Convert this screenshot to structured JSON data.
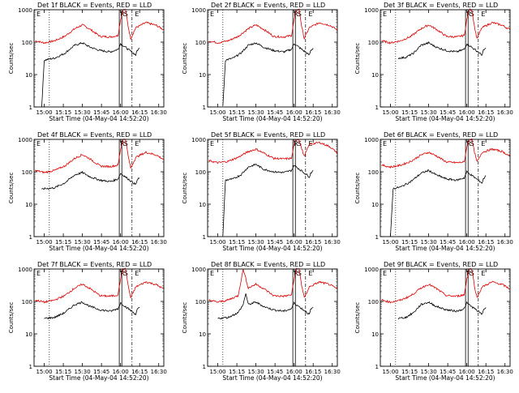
{
  "figure": {
    "xlabel": "Start Time (04-May-04 14:52:20)",
    "ylabel": "Counts/sec",
    "black_label": "BLACK = Events",
    "red_label": "RED = LLD",
    "colors": {
      "events": "#000000",
      "lld": "#dd0000",
      "axes": "#000000"
    }
  },
  "chart_data": [
    {
      "type": "line",
      "detector": "1f",
      "title": "Det 1f BLACK = Events, RED = LLD",
      "xlabel": "Start Time (04-May-04 14:52:20)",
      "ylabel": "Counts/sec",
      "yscale": "log",
      "ylim": [
        1,
        1000
      ],
      "xlim": [
        "14:52",
        "16:34"
      ],
      "xticks": [
        "15:00",
        "15:15",
        "15:30",
        "15:45",
        "16:00",
        "16:15",
        "16:30"
      ],
      "yticks": [
        "1",
        "10",
        "100",
        "1000"
      ],
      "markers": [
        "E",
        "R",
        "S",
        "E"
      ],
      "series": [
        {
          "name": "RED = LLD",
          "color": "#dd0000",
          "x": [
            "14:53",
            "15:00",
            "15:08",
            "15:16",
            "15:24",
            "15:30",
            "15:36",
            "15:44",
            "15:52",
            "15:58",
            "16:00",
            "16:02",
            "16:04",
            "16:06",
            "16:08",
            "16:12",
            "16:20",
            "16:28",
            "16:34"
          ],
          "y": [
            110,
            95,
            110,
            150,
            260,
            340,
            250,
            150,
            145,
            160,
            500,
            1000,
            1000,
            300,
            130,
            280,
            400,
            330,
            240
          ]
        },
        {
          "name": "BLACK = Events",
          "color": "#000000",
          "x": [
            "14:58",
            "15:00",
            "15:08",
            "15:16",
            "15:24",
            "15:30",
            "15:36",
            "15:44",
            "15:52",
            "15:58",
            "16:00",
            "16:12",
            "16:13",
            "16:15"
          ],
          "y": [
            1,
            28,
            32,
            45,
            80,
            95,
            70,
            55,
            50,
            60,
            90,
            40,
            55,
            65
          ]
        }
      ]
    },
    {
      "type": "line",
      "detector": "2f",
      "title": "Det 2f BLACK = Events, RED = LLD",
      "xlabel": "Start Time (04-May-04 14:52:20)",
      "ylabel": "Counts/sec",
      "yscale": "log",
      "ylim": [
        1,
        1000
      ],
      "xlim": [
        "14:52",
        "16:34"
      ],
      "xticks": [
        "15:00",
        "15:15",
        "15:30",
        "15:45",
        "16:00",
        "16:15",
        "16:30"
      ],
      "yticks": [
        "1",
        "10",
        "100",
        "1000"
      ],
      "markers": [
        "E",
        "R",
        "S",
        "E"
      ],
      "series": [
        {
          "name": "RED = LLD",
          "color": "#dd0000",
          "x": [
            "14:53",
            "15:00",
            "15:08",
            "15:16",
            "15:24",
            "15:30",
            "15:36",
            "15:44",
            "15:52",
            "15:58",
            "16:00",
            "16:02",
            "16:04",
            "16:06",
            "16:08",
            "16:12",
            "16:20",
            "16:28",
            "16:34"
          ],
          "y": [
            110,
            95,
            110,
            150,
            260,
            340,
            250,
            150,
            145,
            160,
            500,
            1000,
            1000,
            300,
            130,
            280,
            400,
            330,
            240
          ]
        },
        {
          "name": "BLACK = Events",
          "color": "#000000",
          "x": [
            "15:04",
            "15:06",
            "15:12",
            "15:18",
            "15:24",
            "15:30",
            "15:36",
            "15:44",
            "15:52",
            "15:58",
            "16:00",
            "16:12",
            "16:13",
            "16:15"
          ],
          "y": [
            1,
            28,
            32,
            45,
            80,
            95,
            70,
            55,
            50,
            60,
            90,
            40,
            55,
            65
          ]
        }
      ]
    },
    {
      "type": "line",
      "detector": "3f",
      "title": "Det 3f BLACK = Events, RED = LLD",
      "xlabel": "Start Time (04-May-04 14:52:20)",
      "ylabel": "Counts/sec",
      "yscale": "log",
      "ylim": [
        1,
        1000
      ],
      "xlim": [
        "14:52",
        "16:34"
      ],
      "xticks": [
        "15:00",
        "15:15",
        "15:30",
        "15:45",
        "16:00",
        "16:15",
        "16:30"
      ],
      "yticks": [
        "1",
        "10",
        "100",
        "1000"
      ],
      "markers": [
        "E",
        "R",
        "S",
        "E"
      ],
      "series": [
        {
          "name": "RED = LLD",
          "color": "#dd0000",
          "x": [
            "14:53",
            "15:00",
            "15:08",
            "15:16",
            "15:24",
            "15:30",
            "15:36",
            "15:44",
            "15:52",
            "15:58",
            "16:00",
            "16:02",
            "16:04",
            "16:06",
            "16:08",
            "16:12",
            "16:20",
            "16:28",
            "16:34"
          ],
          "y": [
            110,
            95,
            110,
            150,
            260,
            340,
            250,
            150,
            145,
            160,
            500,
            1000,
            1000,
            300,
            130,
            280,
            400,
            330,
            240
          ]
        },
        {
          "name": "BLACK = Events",
          "color": "#000000",
          "x": [
            "15:06",
            "15:12",
            "15:18",
            "15:24",
            "15:30",
            "15:36",
            "15:44",
            "15:52",
            "15:58",
            "16:00",
            "16:12",
            "16:13",
            "16:15"
          ],
          "y": [
            32,
            34,
            45,
            80,
            95,
            70,
            55,
            50,
            60,
            90,
            40,
            55,
            65
          ]
        }
      ]
    },
    {
      "type": "line",
      "detector": "4f",
      "title": "Det 4f BLACK = Events, RED = LLD",
      "xlabel": "Start Time (04-May-04 14:52:20)",
      "ylabel": "Counts/sec",
      "yscale": "log",
      "ylim": [
        1,
        1000
      ],
      "xlim": [
        "14:52",
        "16:34"
      ],
      "xticks": [
        "15:00",
        "15:15",
        "15:30",
        "15:45",
        "16:00",
        "16:15",
        "16:30"
      ],
      "yticks": [
        "1",
        "10",
        "100",
        "1000"
      ],
      "markers": [
        "E",
        "R",
        "S",
        "E"
      ],
      "series": [
        {
          "name": "RED = LLD",
          "color": "#dd0000",
          "x": [
            "14:53",
            "15:00",
            "15:08",
            "15:16",
            "15:24",
            "15:30",
            "15:36",
            "15:44",
            "15:52",
            "15:58",
            "16:00",
            "16:02",
            "16:04",
            "16:06",
            "16:08",
            "16:12",
            "16:20",
            "16:28",
            "16:34"
          ],
          "y": [
            110,
            95,
            110,
            150,
            260,
            340,
            250,
            150,
            145,
            160,
            500,
            1000,
            1000,
            300,
            130,
            280,
            400,
            330,
            240
          ]
        },
        {
          "name": "BLACK = Events",
          "color": "#000000",
          "x": [
            "14:58",
            "15:00",
            "15:08",
            "15:16",
            "15:24",
            "15:30",
            "15:36",
            "15:44",
            "15:52",
            "15:58",
            "16:00",
            "16:12",
            "16:13",
            "16:15"
          ],
          "y": [
            28,
            30,
            32,
            45,
            80,
            95,
            70,
            55,
            50,
            60,
            90,
            40,
            55,
            65
          ]
        }
      ]
    },
    {
      "type": "line",
      "detector": "5f",
      "title": "Det 5f BLACK = Events, RED = LLD",
      "xlabel": "Start Time (04-May-04 14:52:20)",
      "ylabel": "Counts/sec",
      "yscale": "log",
      "ylim": [
        1,
        1000
      ],
      "xlim": [
        "14:52",
        "16:34"
      ],
      "xticks": [
        "15:00",
        "15:15",
        "15:30",
        "15:45",
        "16:00",
        "16:15",
        "16:30"
      ],
      "yticks": [
        "1",
        "10",
        "100",
        "1000"
      ],
      "markers": [
        "E",
        "R",
        "S",
        "E"
      ],
      "series": [
        {
          "name": "RED = LLD",
          "color": "#dd0000",
          "x": [
            "14:53",
            "15:00",
            "15:08",
            "15:16",
            "15:24",
            "15:30",
            "15:36",
            "15:44",
            "15:52",
            "15:58",
            "16:00",
            "16:02",
            "16:04",
            "16:06",
            "16:08",
            "16:12",
            "16:20",
            "16:28",
            "16:34"
          ],
          "y": [
            220,
            190,
            210,
            280,
            420,
            500,
            380,
            260,
            250,
            260,
            700,
            1000,
            1000,
            500,
            300,
            700,
            800,
            600,
            380
          ]
        },
        {
          "name": "BLACK = Events",
          "color": "#000000",
          "x": [
            "15:04",
            "15:06",
            "15:12",
            "15:18",
            "15:24",
            "15:30",
            "15:36",
            "15:44",
            "15:52",
            "15:58",
            "16:00",
            "16:12",
            "16:13",
            "16:15"
          ],
          "y": [
            1,
            55,
            60,
            80,
            140,
            170,
            120,
            100,
            95,
            110,
            160,
            70,
            90,
            110
          ]
        }
      ]
    },
    {
      "type": "line",
      "detector": "6f",
      "title": "Det 6f BLACK = Events, RED = LLD",
      "xlabel": "Start Time (04-May-04 14:52:20)",
      "ylabel": "Counts/sec",
      "yscale": "log",
      "ylim": [
        1,
        1000
      ],
      "xlim": [
        "14:52",
        "16:34"
      ],
      "xticks": [
        "15:00",
        "15:15",
        "15:30",
        "15:45",
        "16:00",
        "16:15",
        "16:30"
      ],
      "yticks": [
        "1",
        "10",
        "100",
        "1000"
      ],
      "markers": [
        "E",
        "R",
        "S",
        "E"
      ],
      "series": [
        {
          "name": "RED = LLD",
          "color": "#dd0000",
          "x": [
            "14:53",
            "15:00",
            "15:08",
            "15:16",
            "15:24",
            "15:30",
            "15:36",
            "15:44",
            "15:52",
            "15:58",
            "16:00",
            "16:02",
            "16:04",
            "16:06",
            "16:08",
            "16:12",
            "16:20",
            "16:28",
            "16:34"
          ],
          "y": [
            160,
            140,
            160,
            210,
            330,
            400,
            310,
            200,
            190,
            200,
            600,
            1000,
            1000,
            400,
            200,
            400,
            500,
            420,
            300
          ]
        },
        {
          "name": "BLACK = Events",
          "color": "#000000",
          "x": [
            "15:00",
            "15:02",
            "15:08",
            "15:16",
            "15:24",
            "15:30",
            "15:36",
            "15:44",
            "15:52",
            "15:58",
            "16:00",
            "16:12",
            "16:13",
            "16:15"
          ],
          "y": [
            1,
            30,
            34,
            50,
            90,
            110,
            80,
            60,
            55,
            65,
            100,
            45,
            60,
            75
          ]
        }
      ]
    },
    {
      "type": "line",
      "detector": "7f",
      "title": "Det 7f BLACK = Events, RED = LLD",
      "xlabel": "Start Time (04-May-04 14:52:20)",
      "ylabel": "Counts/sec",
      "yscale": "log",
      "ylim": [
        1,
        1000
      ],
      "xlim": [
        "14:52",
        "16:34"
      ],
      "xticks": [
        "15:00",
        "15:15",
        "15:30",
        "15:45",
        "16:00",
        "16:15",
        "16:30"
      ],
      "yticks": [
        "1",
        "10",
        "100",
        "1000"
      ],
      "markers": [
        "E",
        "R",
        "S",
        "E"
      ],
      "series": [
        {
          "name": "RED = LLD",
          "color": "#dd0000",
          "x": [
            "14:53",
            "15:00",
            "15:08",
            "15:16",
            "15:24",
            "15:30",
            "15:36",
            "15:44",
            "15:52",
            "15:58",
            "16:00",
            "16:02",
            "16:04",
            "16:06",
            "16:08",
            "16:12",
            "16:20",
            "16:28",
            "16:34"
          ],
          "y": [
            110,
            95,
            110,
            150,
            260,
            340,
            250,
            150,
            145,
            160,
            500,
            1000,
            1000,
            300,
            130,
            280,
            400,
            330,
            240
          ]
        },
        {
          "name": "BLACK = Events",
          "color": "#000000",
          "x": [
            "15:00",
            "15:08",
            "15:16",
            "15:24",
            "15:30",
            "15:36",
            "15:44",
            "15:52",
            "15:58",
            "16:00",
            "16:12",
            "16:13",
            "16:15"
          ],
          "y": [
            30,
            32,
            45,
            80,
            95,
            70,
            55,
            50,
            60,
            90,
            40,
            55,
            65
          ]
        }
      ]
    },
    {
      "type": "line",
      "detector": "8f",
      "title": "Det 8f BLACK = Events, RED = LLD",
      "xlabel": "Start Time (04-May-04 14:52:20)",
      "ylabel": "Counts/sec",
      "yscale": "log",
      "ylim": [
        1,
        1000
      ],
      "xlim": [
        "14:52",
        "16:34"
      ],
      "xticks": [
        "15:00",
        "15:15",
        "15:30",
        "15:45",
        "16:00",
        "16:15",
        "16:30"
      ],
      "yticks": [
        "1",
        "10",
        "100",
        "1000"
      ],
      "markers": [
        "E",
        "R",
        "S",
        "E"
      ],
      "series": [
        {
          "name": "RED = LLD",
          "color": "#dd0000",
          "x": [
            "14:53",
            "15:00",
            "15:08",
            "15:16",
            "15:20",
            "15:24",
            "15:30",
            "15:36",
            "15:44",
            "15:52",
            "15:58",
            "16:00",
            "16:02",
            "16:04",
            "16:06",
            "16:08",
            "16:12",
            "16:20",
            "16:28",
            "16:34"
          ],
          "y": [
            110,
            95,
            110,
            150,
            1000,
            260,
            340,
            250,
            150,
            145,
            160,
            500,
            1000,
            1000,
            300,
            130,
            280,
            400,
            330,
            240
          ]
        },
        {
          "name": "BLACK = Events",
          "color": "#000000",
          "x": [
            "15:00",
            "15:08",
            "15:16",
            "15:20",
            "15:22",
            "15:24",
            "15:30",
            "15:36",
            "15:44",
            "15:52",
            "15:58",
            "16:00",
            "16:12",
            "16:13",
            "16:15"
          ],
          "y": [
            30,
            32,
            45,
            80,
            180,
            80,
            95,
            70,
            55,
            50,
            60,
            90,
            40,
            55,
            65
          ]
        }
      ]
    },
    {
      "type": "line",
      "detector": "9f",
      "title": "Det 9f BLACK = Events, RED = LLD",
      "xlabel": "Start Time (04-May-04 14:52:20)",
      "ylabel": "Counts/sec",
      "yscale": "log",
      "ylim": [
        1,
        1000
      ],
      "xlim": [
        "14:52",
        "16:34"
      ],
      "xticks": [
        "15:00",
        "15:15",
        "15:30",
        "15:45",
        "16:00",
        "16:15",
        "16:30"
      ],
      "yticks": [
        "1",
        "10",
        "100",
        "1000"
      ],
      "markers": [
        "E",
        "R",
        "S",
        "E"
      ],
      "series": [
        {
          "name": "RED = LLD",
          "color": "#dd0000",
          "x": [
            "14:53",
            "15:00",
            "15:08",
            "15:16",
            "15:24",
            "15:30",
            "15:36",
            "15:44",
            "15:52",
            "15:58",
            "16:00",
            "16:02",
            "16:04",
            "16:06",
            "16:08",
            "16:12",
            "16:20",
            "16:28",
            "16:34"
          ],
          "y": [
            110,
            95,
            110,
            150,
            260,
            340,
            250,
            150,
            145,
            160,
            500,
            1000,
            1000,
            300,
            130,
            280,
            400,
            330,
            240
          ]
        },
        {
          "name": "BLACK = Events",
          "color": "#000000",
          "x": [
            "15:06",
            "15:12",
            "15:18",
            "15:24",
            "15:30",
            "15:36",
            "15:44",
            "15:52",
            "15:58",
            "16:00",
            "16:12",
            "16:13",
            "16:15"
          ],
          "y": [
            30,
            32,
            45,
            80,
            95,
            70,
            55,
            50,
            60,
            90,
            40,
            55,
            65
          ]
        }
      ]
    }
  ]
}
